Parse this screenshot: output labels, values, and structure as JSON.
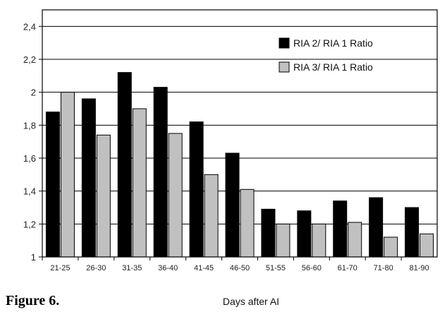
{
  "caption": "Figure 6.",
  "chart_data": {
    "type": "bar",
    "xlabel": "Days after AI",
    "ylabel": "",
    "ylim": [
      1,
      2.5
    ],
    "yticks": [
      "1",
      "1,2",
      "1,4",
      "1,6",
      "1,8",
      "2",
      "2,2",
      "2,4"
    ],
    "ytick_values": [
      1,
      1.2,
      1.4,
      1.6,
      1.8,
      2.0,
      2.2,
      2.4
    ],
    "grid": true,
    "legend_position": "top-right",
    "categories": [
      "21-25",
      "26-30",
      "31-35",
      "36-40",
      "41-45",
      "46-50",
      "51-55",
      "56-60",
      "61-70",
      "71-80",
      "81-90"
    ],
    "series": [
      {
        "name": "RIA 2/ RIA 1 Ratio",
        "color": "#000000",
        "values": [
          1.88,
          1.96,
          2.12,
          2.03,
          1.82,
          1.63,
          1.29,
          1.28,
          1.34,
          1.36,
          1.3
        ]
      },
      {
        "name": "RIA 3/ RIA 1 Ratio",
        "color": "#c0c0c0",
        "values": [
          2.0,
          1.74,
          1.9,
          1.75,
          1.5,
          1.41,
          1.2,
          1.2,
          1.21,
          1.12,
          1.14
        ]
      }
    ]
  }
}
